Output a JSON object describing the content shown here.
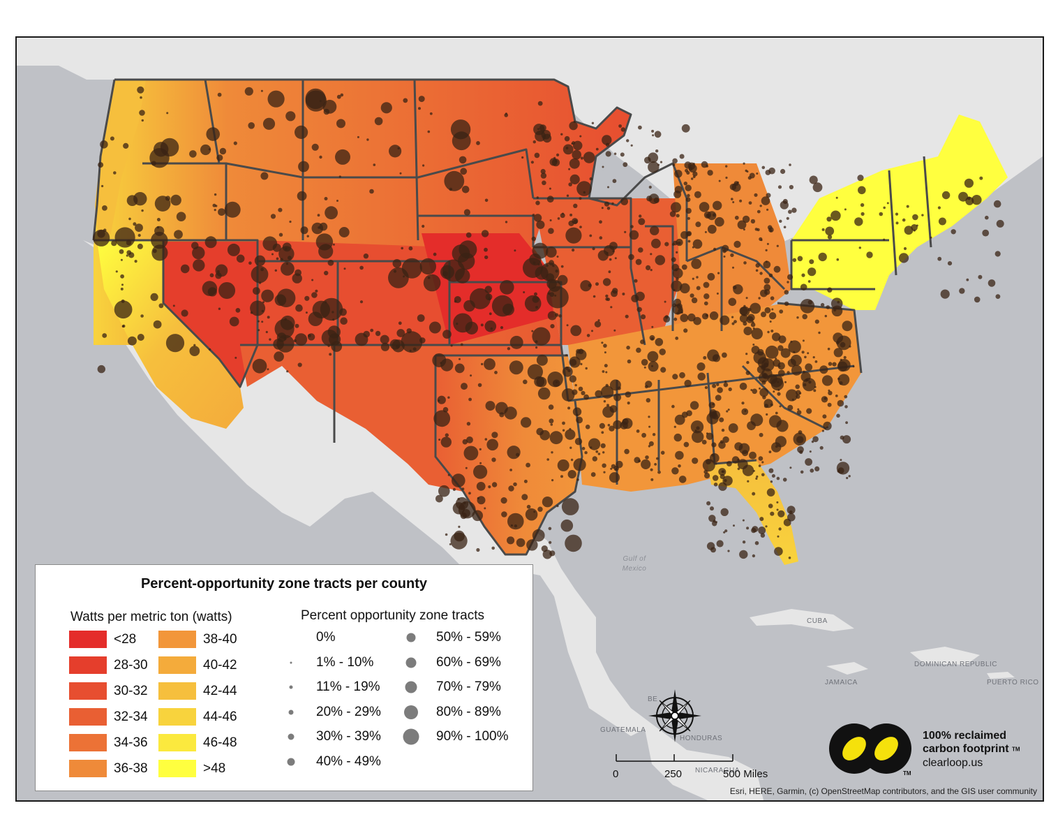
{
  "legend": {
    "title": "Percent-opportunity zone tracts per county",
    "watts_title": "Watts per metric ton (watts)",
    "watts_classes": [
      {
        "label": "<28",
        "color": "#e42d2a"
      },
      {
        "label": "28-30",
        "color": "#e53e2c"
      },
      {
        "label": "30-32",
        "color": "#e74e30"
      },
      {
        "label": "32-34",
        "color": "#e95f33"
      },
      {
        "label": "34-36",
        "color": "#ec7236"
      },
      {
        "label": "36-38",
        "color": "#ef8a39"
      },
      {
        "label": "38-40",
        "color": "#f2963a"
      },
      {
        "label": "40-42",
        "color": "#f4ab3b"
      },
      {
        "label": "42-44",
        "color": "#f6bf3d"
      },
      {
        "label": "44-46",
        "color": "#f8d33d"
      },
      {
        "label": "46-48",
        "color": "#fbe93e"
      },
      {
        "label": ">48",
        "color": "#ffff3f"
      }
    ],
    "pct_title": "Percent opportunity zone tracts",
    "pct_classes": [
      {
        "label": "0%",
        "size": 0
      },
      {
        "label": "1% - 10%",
        "size": 3
      },
      {
        "label": "11% - 19%",
        "size": 5
      },
      {
        "label": "20% - 29%",
        "size": 7
      },
      {
        "label": "30% - 39%",
        "size": 9
      },
      {
        "label": "40% - 49%",
        "size": 11
      },
      {
        "label": "50% - 59%",
        "size": 13
      },
      {
        "label": "60% - 69%",
        "size": 15
      },
      {
        "label": "70% - 79%",
        "size": 17
      },
      {
        "label": "80% - 89%",
        "size": 20
      },
      {
        "label": "90% - 100%",
        "size": 23
      }
    ]
  },
  "map_labels": {
    "gulf_line1": "Gulf of",
    "gulf_line2": "Mexico",
    "cuba": "CUBA",
    "dominican_republic": "DOMINICAN REPUBLIC",
    "jamaica": "JAMAICA",
    "puerto_rico": "PUERTO RICO",
    "guatemala": "GUATEMALA",
    "honduras": "HONDURAS",
    "nicaragua": "NICARAGUA",
    "belize": "BE"
  },
  "scale": {
    "t0": "0",
    "t1": "250",
    "t2": "500 Miles"
  },
  "credit": "Esri, HERE, Garmin, (c) OpenStreetMap contributors, and the GIS user community",
  "logo": {
    "line1": "100% reclaimed",
    "line2": "carbon footprint",
    "tm": "TM",
    "url": "clearloop.us"
  },
  "colors": {
    "ocean": "#bfc1c6",
    "land": "#e6e6e6",
    "state_border": "#4a4a4a",
    "dot": "#3a2314",
    "logo_yellow": "#f5e10c"
  },
  "icons": [
    "compass-rose-icon",
    "clearloop-logo-icon"
  ]
}
